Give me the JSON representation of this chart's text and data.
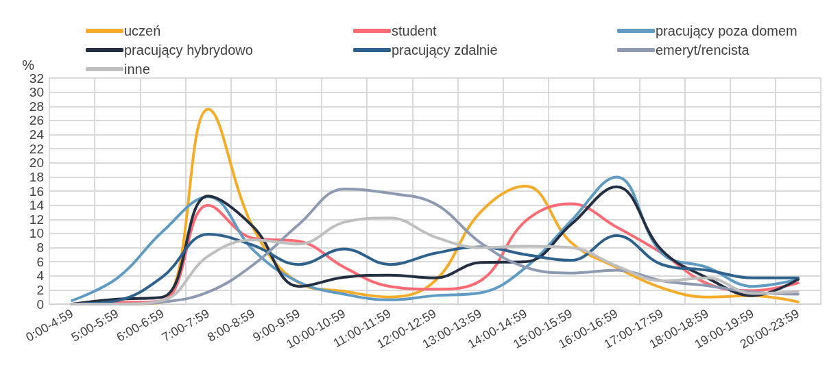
{
  "chart_data": {
    "type": "line",
    "ylabel": "%",
    "categories": [
      "0:00-4:59",
      "5:00-5:59",
      "6:00-6:59",
      "7:00-7:59",
      "8:00-8:59",
      "9:00-9:59",
      "10:00-10:59",
      "11:00-11:59",
      "12:00-12:59",
      "13:00-13:59",
      "14:00-14:59",
      "15:00-15:59",
      "16:00-16:59",
      "17:00-17:59",
      "18:00-18:59",
      "19:00-19:59",
      "20:00-23:59"
    ],
    "series": [
      {
        "name": "uczeń",
        "color": "#f5ac2a",
        "values": [
          0,
          0,
          0.3,
          27.6,
          10.7,
          3,
          1.8,
          1,
          3.3,
          13,
          16.7,
          8.7,
          5.2,
          2.3,
          1,
          1.2,
          0.3
        ]
      },
      {
        "name": "student",
        "color": "#ff6b74",
        "values": [
          0,
          0.2,
          0.5,
          14,
          9.3,
          8.9,
          5.2,
          2.5,
          2.1,
          3.3,
          11.8,
          14.2,
          10.9,
          7.2,
          2.9,
          1.9,
          3
        ]
      },
      {
        "name": "pracujący poza domem",
        "color": "#5f9bc2",
        "values": [
          0.5,
          3.7,
          10.3,
          15.2,
          7.6,
          3.1,
          1.4,
          0.6,
          1.2,
          1.6,
          5.2,
          11.8,
          18,
          7.2,
          5.2,
          2.5,
          3.5
        ]
      },
      {
        "name": "pracujący hybrydowo",
        "color": "#252f42",
        "values": [
          0,
          0.7,
          1,
          15.3,
          10.9,
          2.5,
          3.8,
          4.1,
          3.7,
          5.9,
          6,
          11.3,
          16.6,
          7.6,
          3.7,
          1.2,
          3.5
        ]
      },
      {
        "name": "pracujący zdalnie",
        "color": "#2e618b",
        "values": [
          0,
          0.5,
          3.9,
          9.9,
          8.3,
          5.6,
          7.8,
          5.6,
          7.2,
          8.1,
          7,
          6.2,
          9.7,
          5.6,
          4.8,
          3.7,
          3.7
        ]
      },
      {
        "name": "emeryt/rencista",
        "color": "#8e9ab2",
        "values": [
          0,
          0,
          0.3,
          1.7,
          5.6,
          11.3,
          16.3,
          15.7,
          14.2,
          8.7,
          5.2,
          4.4,
          4.8,
          3.3,
          2.6,
          1.7,
          1.4
        ]
      },
      {
        "name": "inne",
        "color": "#bfbfbf",
        "values": [
          0,
          0,
          0.5,
          6.8,
          9.1,
          8.5,
          11.6,
          12.2,
          9.5,
          8,
          8.2,
          8,
          5.4,
          3.3,
          3.7,
          1.5,
          1.8
        ]
      }
    ],
    "ylim": [
      0,
      32
    ],
    "yticks": [
      0,
      2,
      4,
      6,
      8,
      10,
      12,
      14,
      16,
      18,
      20,
      22,
      24,
      26,
      28,
      30,
      32
    ],
    "grid": true,
    "legend": "top",
    "marker": "none",
    "line_style": "solid"
  }
}
